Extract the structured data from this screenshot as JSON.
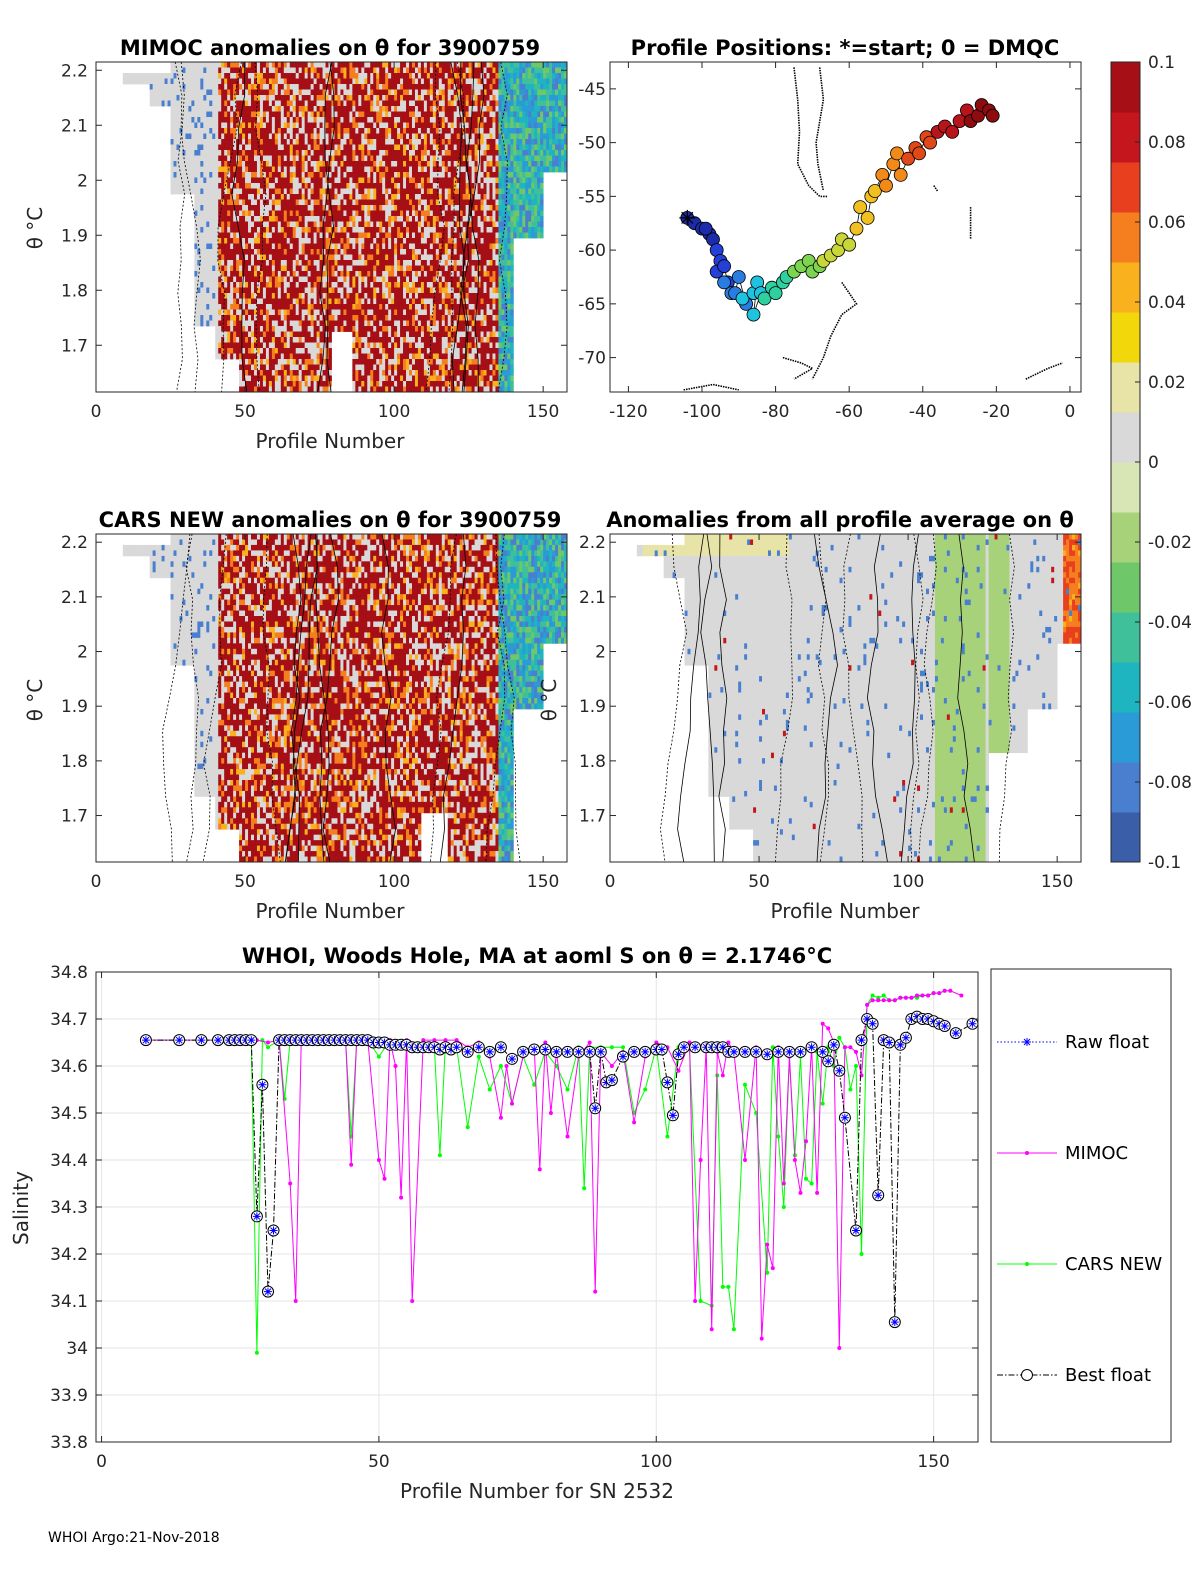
{
  "footer": "WHOI Argo:21-Nov-2018",
  "colors": {
    "raw": "#0000ff",
    "mimoc": "#ff00ff",
    "cars": "#00ff00",
    "best": "#000000",
    "colormap": [
      "#3a5fa8",
      "#4a7fd0",
      "#2a9bd6",
      "#1fb5c0",
      "#3fbf9a",
      "#6ec86a",
      "#a7d27a",
      "#d8e5b5",
      "#d9d9d9",
      "#e8e4a8",
      "#f2d70a",
      "#f9b21d",
      "#f57f1f",
      "#e8401f",
      "#c4161c",
      "#a50f15"
    ]
  },
  "chart_data": [
    {
      "id": "mimoc",
      "type": "heatmap",
      "title": "MIMOC anomalies on θ  for 3900759",
      "xlabel": "Profile Number",
      "ylabel": "θ °C",
      "xlim": [
        0,
        158
      ],
      "ylim": [
        1.615,
        2.215
      ],
      "xticks": [
        "0",
        "50",
        "100",
        "150"
      ],
      "xtickvals": [
        0,
        50,
        100,
        150
      ],
      "yticks": [
        "1.7",
        "1.8",
        "1.9",
        "2",
        "2.1",
        "2.2"
      ],
      "ytickvals": [
        1.7,
        1.8,
        1.9,
        2.0,
        2.1,
        2.2
      ],
      "pattern": "mimoc"
    },
    {
      "id": "positions",
      "type": "scatter",
      "title": "Profile Positions: *=start; 0 = DMQC",
      "xlim": [
        -125,
        3
      ],
      "ylim": [
        -73.2,
        -42.5
      ],
      "xticks": [
        "-120",
        "-100",
        "-80",
        "-60",
        "-40",
        "-20",
        "0"
      ],
      "xtickvals": [
        -120,
        -100,
        -80,
        -60,
        -40,
        -20,
        0
      ],
      "yticks": [
        "-45",
        "-50",
        "-55",
        "-60",
        "-65",
        "-70"
      ],
      "ytickvals": [
        -45,
        -50,
        -55,
        -60,
        -65,
        -70
      ],
      "track_lon": [
        -104,
        -102,
        -100,
        -98,
        -97,
        -99,
        -96,
        -95,
        -96,
        -94,
        -93,
        -92,
        -94,
        -91,
        -90,
        -88,
        -89,
        -86,
        -85,
        -86,
        -84,
        -83,
        -81,
        -80,
        -78,
        -77,
        -75,
        -73,
        -71,
        -70,
        -68,
        -67,
        -65,
        -63,
        -62,
        -60,
        -58,
        -57,
        -55,
        -54,
        -53,
        -51,
        -50,
        -48,
        -47,
        -46,
        -44,
        -42,
        -41,
        -39,
        -38,
        -36,
        -34,
        -32,
        -30,
        -28,
        -27,
        -25,
        -24,
        -22,
        -21
      ],
      "track_lat": [
        -57,
        -57.5,
        -58,
        -58.5,
        -59,
        -58,
        -60,
        -61,
        -62,
        -61.5,
        -63,
        -64,
        -63,
        -64,
        -62.5,
        -65,
        -64.5,
        -64,
        -63,
        -66,
        -64,
        -64.5,
        -63.5,
        -64,
        -63,
        -62.5,
        -62,
        -61.5,
        -61,
        -62,
        -61.5,
        -61,
        -60.5,
        -60,
        -59,
        -59.5,
        -58,
        -56,
        -57,
        -55,
        -54.5,
        -53,
        -54,
        -52,
        -51,
        -53,
        -51.5,
        -50.5,
        -51,
        -49.5,
        -50,
        -49,
        -48.5,
        -49,
        -48,
        -47,
        -48,
        -47.5,
        -46.5,
        -47,
        -47.5
      ]
    },
    {
      "id": "cars",
      "type": "heatmap",
      "title": "CARS NEW anomalies on θ for 3900759",
      "xlabel": "Profile Number",
      "ylabel": "θ °C",
      "xlim": [
        0,
        158
      ],
      "ylim": [
        1.615,
        2.215
      ],
      "xticks": [
        "0",
        "50",
        "100",
        "150"
      ],
      "xtickvals": [
        0,
        50,
        100,
        150
      ],
      "yticks": [
        "1.7",
        "1.8",
        "1.9",
        "2",
        "2.1",
        "2.2"
      ],
      "ytickvals": [
        1.7,
        1.8,
        1.9,
        2.0,
        2.1,
        2.2
      ],
      "pattern": "cars"
    },
    {
      "id": "allavg",
      "type": "heatmap",
      "title": "Anomalies from all profile average on θ",
      "xlabel": "Profile Number",
      "ylabel": "θ °C",
      "xlim": [
        0,
        158
      ],
      "ylim": [
        1.615,
        2.215
      ],
      "xticks": [
        "0",
        "50",
        "100",
        "150"
      ],
      "xtickvals": [
        0,
        50,
        100,
        150
      ],
      "yticks": [
        "1.7",
        "1.8",
        "1.9",
        "2",
        "2.1",
        "2.2"
      ],
      "ytickvals": [
        1.7,
        1.8,
        1.9,
        2.0,
        2.1,
        2.2
      ],
      "pattern": "avg"
    },
    {
      "id": "colorbar",
      "type": "colorbar",
      "range": [
        -0.1,
        0.1
      ],
      "ticks": [
        "0.1",
        "0.08",
        "0.06",
        "0.04",
        "0.02",
        "0",
        "-0.02",
        "-0.04",
        "-0.06",
        "-0.08",
        "-0.1"
      ],
      "tickvals": [
        0.1,
        0.08,
        0.06,
        0.04,
        0.02,
        0,
        -0.02,
        -0.04,
        -0.06,
        -0.08,
        -0.1
      ]
    },
    {
      "id": "salinity",
      "type": "line",
      "title": "WHOI, Woods Hole, MA at aoml S on θ = 2.1746°C",
      "xlabel": "Profile Number for SN 2532",
      "ylabel": "Salinity",
      "xlim": [
        -1,
        158
      ],
      "ylim": [
        33.8,
        34.8
      ],
      "xticks": [
        "0",
        "50",
        "100",
        "150"
      ],
      "xtickvals": [
        0,
        50,
        100,
        150
      ],
      "yticks": [
        "34.8",
        "34.7",
        "34.6",
        "34.5",
        "34.4",
        "34.3",
        "34.2",
        "34.1",
        "34",
        "33.9",
        "33.8"
      ],
      "ytickvals": [
        34.8,
        34.7,
        34.6,
        34.5,
        34.4,
        34.3,
        34.2,
        34.1,
        34.0,
        33.9,
        33.8
      ],
      "legend": [
        "Raw float",
        "MIMOC",
        "CARS NEW",
        "Best float"
      ],
      "series": [
        {
          "name": "Best float",
          "x": [
            8,
            14,
            18,
            21,
            23,
            24,
            25,
            26,
            27,
            28,
            29,
            30,
            31,
            32,
            33,
            34,
            35,
            36,
            37,
            38,
            39,
            40,
            41,
            42,
            43,
            44,
            45,
            46,
            47,
            48,
            49,
            50,
            51,
            52,
            53,
            54,
            55,
            56,
            57,
            58,
            59,
            60,
            61,
            62,
            63,
            64,
            66,
            68,
            70,
            72,
            74,
            76,
            78,
            80,
            82,
            84,
            86,
            88,
            89,
            90,
            91,
            92,
            94,
            96,
            98,
            100,
            101,
            102,
            103,
            104,
            105,
            107,
            109,
            110,
            111,
            112,
            113,
            114,
            116,
            118,
            120,
            122,
            124,
            126,
            128,
            130,
            131,
            132,
            133,
            134,
            136,
            137,
            138,
            139,
            140,
            141,
            142,
            143,
            144,
            145,
            146,
            147,
            148,
            149,
            150,
            151,
            152,
            154,
            157
          ],
          "y": [
            34.655,
            34.655,
            34.655,
            34.655,
            34.655,
            34.655,
            34.655,
            34.655,
            34.655,
            34.28,
            34.56,
            34.12,
            34.25,
            34.655,
            34.655,
            34.655,
            34.655,
            34.655,
            34.655,
            34.655,
            34.655,
            34.655,
            34.655,
            34.655,
            34.655,
            34.655,
            34.655,
            34.655,
            34.655,
            34.655,
            34.65,
            34.65,
            34.65,
            34.645,
            34.645,
            34.645,
            34.645,
            34.64,
            34.64,
            34.64,
            34.64,
            34.64,
            34.635,
            34.64,
            34.635,
            34.64,
            34.63,
            34.64,
            34.63,
            34.64,
            34.615,
            34.63,
            34.635,
            34.635,
            34.63,
            34.63,
            34.63,
            34.63,
            34.51,
            34.63,
            34.565,
            34.57,
            34.62,
            34.63,
            34.63,
            34.635,
            34.635,
            34.565,
            34.495,
            34.625,
            34.64,
            34.64,
            34.64,
            34.64,
            34.64,
            34.64,
            34.63,
            34.63,
            34.63,
            34.63,
            34.625,
            34.63,
            34.63,
            34.63,
            34.64,
            34.63,
            34.61,
            34.645,
            34.59,
            34.49,
            34.25,
            34.655,
            34.7,
            34.69,
            34.325,
            34.655,
            34.65,
            34.055,
            34.645,
            34.66,
            34.7,
            34.705,
            34.7,
            34.7,
            34.695,
            34.69,
            34.685,
            34.67,
            34.69
          ]
        },
        {
          "name": "MIMOC",
          "x": [
            8,
            14,
            18,
            21,
            23,
            25,
            27,
            28,
            30,
            32,
            34,
            35,
            36,
            38,
            40,
            42,
            44,
            45,
            46,
            48,
            50,
            51,
            52,
            53,
            54,
            55,
            56,
            58,
            60,
            62,
            64,
            66,
            68,
            70,
            72,
            73,
            74,
            76,
            78,
            79,
            80,
            81,
            82,
            84,
            86,
            88,
            89,
            90,
            92,
            94,
            96,
            98,
            100,
            102,
            104,
            106,
            107,
            108,
            109,
            110,
            111,
            112,
            113,
            114,
            116,
            118,
            119,
            120,
            121,
            122,
            123,
            124,
            125,
            126,
            127,
            128,
            129,
            130,
            131,
            132,
            133,
            134,
            135,
            136,
            137,
            138,
            139,
            140,
            141,
            142,
            143,
            144,
            145,
            146,
            147,
            148,
            149,
            150,
            151,
            152,
            153,
            155
          ],
          "y": [
            34.655,
            34.655,
            34.655,
            34.655,
            34.655,
            34.655,
            34.655,
            34.655,
            34.65,
            34.655,
            34.35,
            34.1,
            34.65,
            34.655,
            34.655,
            34.655,
            34.655,
            34.39,
            34.655,
            34.655,
            34.4,
            34.36,
            34.655,
            34.6,
            34.32,
            34.655,
            34.1,
            34.655,
            34.655,
            34.655,
            34.655,
            34.64,
            34.65,
            34.62,
            34.49,
            34.6,
            34.52,
            34.62,
            34.64,
            34.38,
            34.65,
            34.5,
            34.63,
            34.45,
            34.62,
            34.65,
            34.12,
            34.63,
            34.6,
            34.63,
            34.48,
            34.62,
            34.65,
            34.64,
            34.59,
            34.65,
            34.1,
            34.4,
            34.64,
            34.04,
            34.63,
            34.58,
            34.65,
            34.63,
            34.4,
            34.64,
            34.02,
            34.22,
            34.17,
            34.64,
            34.35,
            34.62,
            34.4,
            34.33,
            34.44,
            34.64,
            34.33,
            34.69,
            34.68,
            34.65,
            34.0,
            34.64,
            34.64,
            34.63,
            34.58,
            34.73,
            34.74,
            34.74,
            34.74,
            34.74,
            34.74,
            34.745,
            34.745,
            34.745,
            34.75,
            34.75,
            34.75,
            34.755,
            34.755,
            34.76,
            34.76,
            34.75
          ]
        },
        {
          "name": "CARS NEW",
          "x": [
            8,
            14,
            18,
            21,
            23,
            25,
            27,
            28,
            29,
            30,
            32,
            33,
            34,
            36,
            38,
            40,
            42,
            44,
            45,
            46,
            48,
            50,
            52,
            54,
            56,
            58,
            60,
            61,
            62,
            64,
            66,
            68,
            70,
            72,
            74,
            76,
            78,
            80,
            82,
            84,
            86,
            87,
            88,
            90,
            92,
            94,
            96,
            98,
            100,
            102,
            104,
            106,
            108,
            110,
            111,
            112,
            113,
            114,
            116,
            118,
            120,
            121,
            122,
            123,
            124,
            125,
            126,
            127,
            128,
            129,
            130,
            131,
            132,
            133,
            134,
            135,
            136,
            137,
            138,
            139,
            140,
            141,
            142,
            143,
            144,
            145,
            146,
            147,
            148,
            149,
            150,
            151,
            152
          ],
          "y": [
            34.655,
            34.655,
            34.655,
            34.655,
            34.655,
            34.655,
            34.655,
            33.99,
            34.655,
            34.64,
            34.655,
            34.53,
            34.655,
            34.655,
            34.655,
            34.655,
            34.655,
            34.655,
            34.45,
            34.655,
            34.655,
            34.62,
            34.655,
            34.65,
            34.64,
            34.64,
            34.64,
            34.41,
            34.65,
            34.64,
            34.47,
            34.62,
            34.55,
            34.6,
            34.52,
            34.62,
            34.56,
            34.63,
            34.6,
            34.55,
            34.64,
            34.34,
            34.64,
            34.64,
            34.64,
            34.64,
            34.5,
            34.55,
            34.64,
            34.45,
            34.64,
            34.64,
            34.1,
            34.09,
            34.58,
            34.13,
            34.13,
            34.04,
            34.56,
            34.5,
            34.16,
            34.64,
            34.45,
            34.3,
            34.62,
            34.41,
            34.62,
            34.36,
            34.35,
            34.63,
            34.52,
            34.64,
            34.6,
            34.66,
            34.64,
            34.55,
            34.6,
            34.2,
            34.73,
            34.75,
            34.745,
            34.75,
            34.74,
            34.74,
            34.745,
            34.745,
            34.745,
            34.745,
            34.75,
            34.75,
            34.755,
            34.755,
            34.76
          ]
        }
      ]
    }
  ]
}
